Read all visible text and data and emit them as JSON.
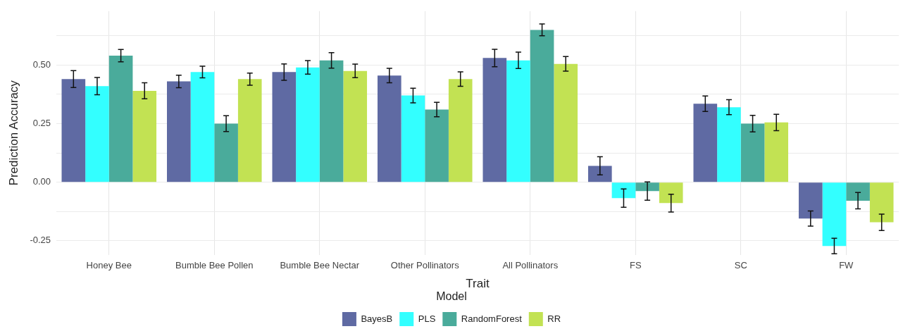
{
  "chart_data": {
    "type": "bar",
    "xlabel": "Trait",
    "ylabel": "Prediction Accuracy",
    "legend_title": "Model",
    "categories": [
      "Honey Bee",
      "Bumble Bee Pollen",
      "Bumble Bee Nectar",
      "Other Pollinators",
      "All Pollinators",
      "FS",
      "SC",
      "FW"
    ],
    "series": [
      {
        "name": "BayesB",
        "color": "#5f6aa3",
        "values": [
          0.44,
          0.43,
          0.47,
          0.455,
          0.53,
          0.07,
          0.335,
          -0.155
        ],
        "errors": [
          0.036,
          0.027,
          0.035,
          0.031,
          0.037,
          0.039,
          0.033,
          0.032
        ]
      },
      {
        "name": "PLS",
        "color": "#33ffff",
        "values": [
          0.41,
          0.47,
          0.49,
          0.37,
          0.52,
          -0.068,
          0.32,
          -0.272
        ],
        "errors": [
          0.037,
          0.025,
          0.029,
          0.031,
          0.035,
          0.039,
          0.032,
          0.033
        ]
      },
      {
        "name": "RandomForest",
        "color": "#4aab9b",
        "values": [
          0.54,
          0.25,
          0.52,
          0.31,
          0.65,
          -0.038,
          0.25,
          -0.079
        ],
        "errors": [
          0.026,
          0.034,
          0.033,
          0.031,
          0.025,
          0.039,
          0.035,
          0.035
        ]
      },
      {
        "name": "RR",
        "color": "#c2e253",
        "values": [
          0.39,
          0.44,
          0.475,
          0.44,
          0.505,
          -0.089,
          0.255,
          -0.171
        ],
        "errors": [
          0.034,
          0.026,
          0.029,
          0.031,
          0.031,
          0.038,
          0.035,
          0.035
        ]
      }
    ],
    "ylim": [
      -0.31,
      0.73
    ],
    "yticks": [
      {
        "value": -0.25,
        "label": "-0.25"
      },
      {
        "value": -0.125,
        "label": null
      },
      {
        "value": 0,
        "label": "0.00"
      },
      {
        "value": 0.125,
        "label": null
      },
      0.25,
      {
        "value": 0.375,
        "label": null
      },
      {
        "value": 0.5,
        "label": "0.50"
      },
      {
        "value": 0.625,
        "label": null
      }
    ],
    "grid": true,
    "legend": "bottom"
  }
}
